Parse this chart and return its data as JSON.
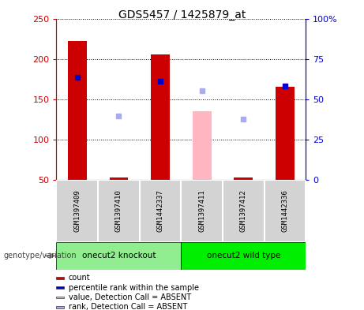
{
  "title": "GDS5457 / 1425879_at",
  "samples": [
    "GSM1397409",
    "GSM1397410",
    "GSM1442337",
    "GSM1397411",
    "GSM1397412",
    "GSM1442336"
  ],
  "bar_values": [
    222,
    null,
    206,
    null,
    null,
    165
  ],
  "bar_color_present": "#cc0000",
  "bar_color_absent": "#ffb6c1",
  "absent_bar_values": [
    null,
    null,
    null,
    135,
    null,
    null
  ],
  "small_bar_present": [
    false,
    true,
    false,
    false,
    true,
    false
  ],
  "blue_square_values": [
    177,
    null,
    172,
    null,
    null,
    166
  ],
  "blue_square_absent_values": [
    null,
    129,
    null,
    161,
    125,
    null
  ],
  "blue_square_color_present": "#0000cc",
  "blue_square_color_absent": "#aaaaee",
  "ylim_left": [
    50,
    250
  ],
  "ylim_right": [
    0,
    100
  ],
  "yticks_left": [
    50,
    100,
    150,
    200,
    250
  ],
  "yticks_right": [
    0,
    25,
    50,
    75,
    100
  ],
  "ytick_labels_right": [
    "0",
    "25",
    "50",
    "75",
    "100%"
  ],
  "left_axis_color": "#cc0000",
  "right_axis_color": "#0000cc",
  "group1_label": "onecut2 knockout",
  "group1_color": "#90ee90",
  "group2_label": "onecut2 wild type",
  "group2_color": "#00ee00",
  "genotype_label": "genotype/variation",
  "legend_items": [
    {
      "color": "#cc0000",
      "label": "count"
    },
    {
      "color": "#0000cc",
      "label": "percentile rank within the sample"
    },
    {
      "color": "#ffb6c1",
      "label": "value, Detection Call = ABSENT"
    },
    {
      "color": "#aaaaee",
      "label": "rank, Detection Call = ABSENT"
    }
  ],
  "small_bar_val": 52.5
}
